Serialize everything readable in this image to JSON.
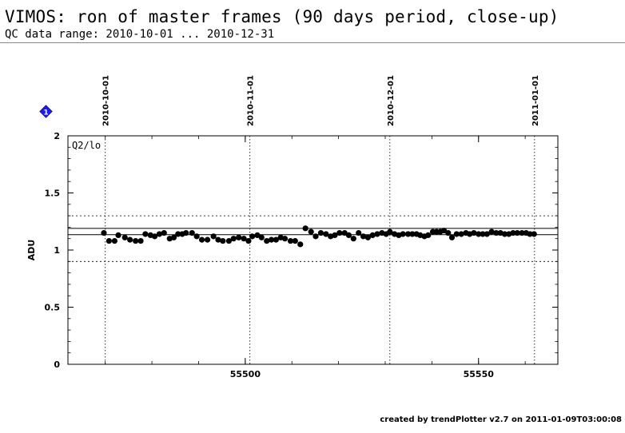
{
  "header": {
    "title": "VIMOS: ron of master frames (90 days period, close-up)",
    "subtitle": "QC data range: 2010-10-01 ... 2010-12-31"
  },
  "footer": {
    "text": "created by trendPlotter v2.7 on 2011-01-09T03:00:08"
  },
  "info_icon": {
    "glyph": "1",
    "color": "#1a1aff"
  },
  "chart_data": {
    "type": "scatter",
    "panel_label": "Q2/lo",
    "ylabel": "ADU",
    "xlim": [
      55462,
      55567
    ],
    "ylim": [
      0,
      2
    ],
    "y_ticks": [
      0,
      0.5,
      1,
      1.5,
      2
    ],
    "y_tick_labels": [
      "0",
      "0.5",
      "1",
      "1.5",
      "2"
    ],
    "x_ticks": [
      55500,
      55550
    ],
    "x_tick_labels": [
      "55500",
      "55550"
    ],
    "date_markers": [
      {
        "mjd": 55470,
        "label": "2010-10-01"
      },
      {
        "mjd": 55501,
        "label": "2010-11-01"
      },
      {
        "mjd": 55531,
        "label": "2010-12-01"
      },
      {
        "mjd": 55562,
        "label": "2011-01-01"
      }
    ],
    "reference_lines": {
      "mean": 1.135,
      "upper_close": 1.19,
      "upper_limit": 1.3,
      "lower_limit": 0.9
    },
    "marker_color": "#000000",
    "x": [
      55469.7,
      55470.8,
      55472.0,
      55472.8,
      55474.2,
      55475.3,
      55476.5,
      55477.6,
      55478.6,
      55479.7,
      55480.6,
      55481.6,
      55482.6,
      55483.8,
      55484.7,
      55485.6,
      55486.5,
      55487.3,
      55488.6,
      55489.6,
      55490.7,
      55491.9,
      55493.2,
      55494.2,
      55495.2,
      55496.5,
      55497.5,
      55498.6,
      55499.7,
      55500.7,
      55501.5,
      55502.6,
      55503.5,
      55504.6,
      55505.6,
      55506.6,
      55507.6,
      55508.5,
      55509.7,
      55510.7,
      55511.8,
      55512.9,
      55514.1,
      55515.1,
      55516.2,
      55517.3,
      55518.3,
      55519.2,
      55520.2,
      55521.3,
      55522.2,
      55523.2,
      55524.3,
      55525.3,
      55526.3,
      55527.3,
      55528.3,
      55529.3,
      55530.2,
      55531.0,
      55532.0,
      55532.9,
      55533.8,
      55534.9,
      55535.8,
      55536.7,
      55537.5,
      55538.4,
      55539.2,
      55540.2,
      55541.0,
      55541.8,
      55542.6,
      55543.5,
      55544.3,
      55545.3,
      55546.3,
      55547.3,
      55548.1,
      55549.0,
      55550.0,
      55550.9,
      55551.8,
      55552.8,
      55553.8,
      55554.7,
      55555.6,
      55556.5,
      55557.4,
      55558.3,
      55559.3,
      55560.2,
      55561.0,
      55561.9
    ],
    "y": [
      1.15,
      1.08,
      1.08,
      1.13,
      1.11,
      1.09,
      1.08,
      1.08,
      1.14,
      1.13,
      1.12,
      1.14,
      1.15,
      1.1,
      1.11,
      1.14,
      1.14,
      1.15,
      1.15,
      1.12,
      1.09,
      1.09,
      1.12,
      1.09,
      1.08,
      1.08,
      1.1,
      1.11,
      1.1,
      1.08,
      1.12,
      1.13,
      1.11,
      1.08,
      1.09,
      1.09,
      1.11,
      1.1,
      1.08,
      1.08,
      1.05,
      1.19,
      1.16,
      1.12,
      1.15,
      1.14,
      1.12,
      1.13,
      1.15,
      1.15,
      1.13,
      1.1,
      1.15,
      1.12,
      1.11,
      1.13,
      1.14,
      1.15,
      1.14,
      1.16,
      1.14,
      1.13,
      1.14,
      1.14,
      1.14,
      1.14,
      1.13,
      1.12,
      1.13,
      1.16,
      1.16,
      1.16,
      1.17,
      1.15,
      1.11,
      1.14,
      1.14,
      1.15,
      1.14,
      1.15,
      1.14,
      1.14,
      1.14,
      1.16,
      1.15,
      1.15,
      1.14,
      1.14,
      1.15,
      1.15,
      1.15,
      1.15,
      1.14,
      1.14
    ]
  }
}
